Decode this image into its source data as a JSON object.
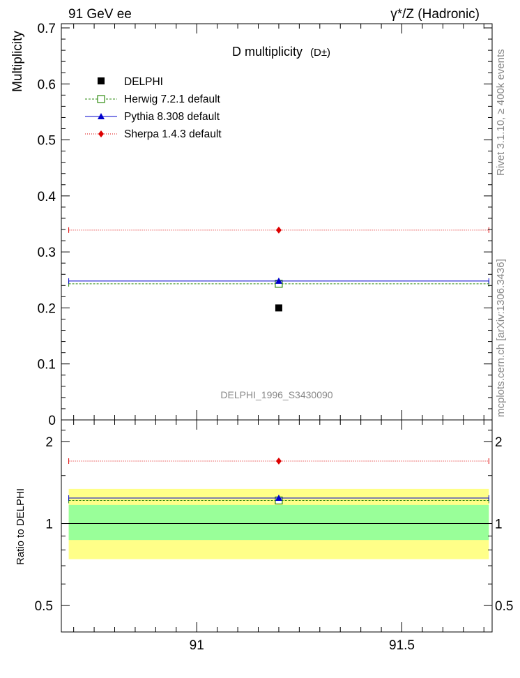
{
  "header": {
    "left": "91 GeV ee",
    "right": "γ*/Z (Hadronic)"
  },
  "side_texts": {
    "rivet": "Rivet 3.1.10, ≥ 400k events",
    "mcplots": "mcplots.cern.ch [arXiv:1306.3436]"
  },
  "chart_data": [
    {
      "type": "scatter",
      "title": "D multiplicity",
      "title_suffix": "(D±)",
      "ylabel": "Multiplicity",
      "xlabel": "",
      "xlim": [
        90.67,
        91.72
      ],
      "ylim": [
        0,
        0.7
      ],
      "yticks": [
        "0",
        "0.1",
        "0.2",
        "0.3",
        "0.4",
        "0.5",
        "0.6",
        "0.7"
      ],
      "watermark": "DELPHI_1996_S3430090",
      "legend": [
        "DELPHI",
        "Herwig 7.2.1 default",
        "Pythia 8.308 default",
        "Sherpa 1.4.3 default"
      ],
      "series": [
        {
          "name": "DELPHI",
          "x": 91.2,
          "value": 0.2,
          "color": "#000000",
          "marker": "square"
        },
        {
          "name": "Herwig 7.2.1 default",
          "x": 91.2,
          "value": 0.243,
          "color": "#2e8b0f",
          "marker": "open-square",
          "line": "dashed"
        },
        {
          "name": "Pythia 8.308 default",
          "x": 91.2,
          "value": 0.248,
          "color": "#0000cc",
          "marker": "triangle",
          "line": "solid"
        },
        {
          "name": "Sherpa 1.4.3 default",
          "x": 91.2,
          "value": 0.339,
          "color": "#dd0000",
          "marker": "diamond",
          "line": "dotted"
        }
      ]
    },
    {
      "type": "scatter",
      "title": "",
      "ylabel": "Ratio to DELPHI",
      "xlabel": "",
      "xlim": [
        90.67,
        91.72
      ],
      "ylim": [
        0.4,
        2.4
      ],
      "yscale": "log",
      "yticks": [
        "0.5",
        "1",
        "2"
      ],
      "xticks": [
        "91",
        "91.5"
      ],
      "bands": [
        {
          "name": "2-sigma",
          "low": 0.74,
          "high": 1.34,
          "color": "#ffff88"
        },
        {
          "name": "1-sigma",
          "low": 0.87,
          "high": 1.17,
          "color": "#99ff99"
        }
      ],
      "series": [
        {
          "name": "DELPHI",
          "x": 91.2,
          "value": 1.0,
          "color": "#000000"
        },
        {
          "name": "Herwig 7.2.1 default",
          "x": 91.2,
          "value": 1.215,
          "color": "#2e8b0f",
          "marker": "open-square",
          "line": "dashed"
        },
        {
          "name": "Pythia 8.308 default",
          "x": 91.2,
          "value": 1.24,
          "color": "#0000cc",
          "marker": "triangle",
          "line": "solid"
        },
        {
          "name": "Sherpa 1.4.3 default",
          "x": 91.2,
          "value": 1.695,
          "color": "#dd0000",
          "marker": "diamond",
          "line": "dotted"
        }
      ]
    }
  ]
}
